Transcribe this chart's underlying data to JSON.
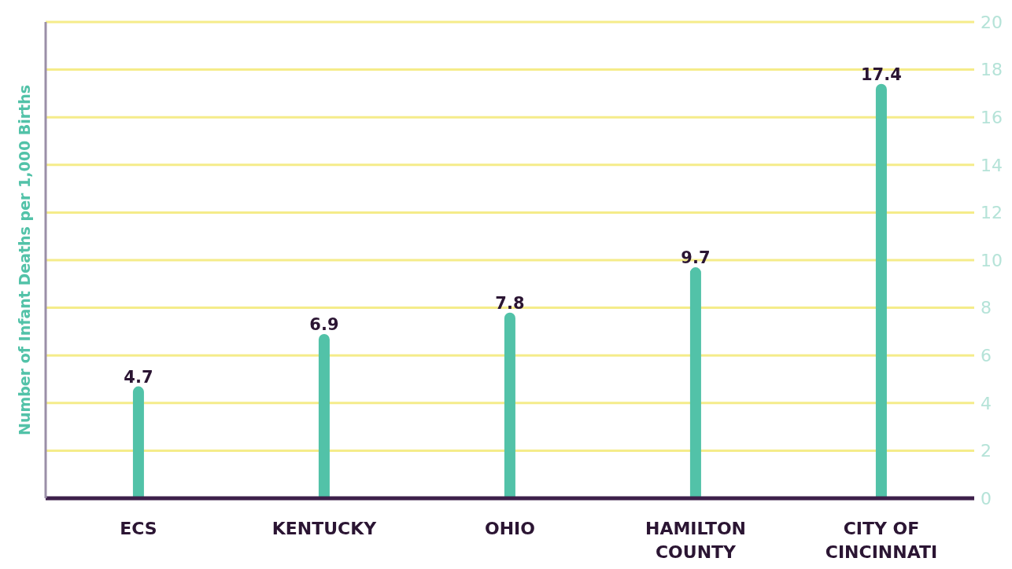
{
  "chart_data": {
    "type": "bar",
    "ylabel": "Number of Infant Deaths per 1,000 Births",
    "categories": [
      "ECS",
      "KENTUCKY",
      "OHIO",
      "HAMILTON COUNTY",
      "CITY OF CINCINNATI"
    ],
    "values": [
      4.7,
      6.9,
      7.8,
      9.7,
      17.4
    ],
    "color": "#52c2a8",
    "data_labels": true,
    "ylim": [
      0,
      20
    ],
    "yticks": [
      0,
      2,
      4,
      6,
      8,
      10,
      12,
      14,
      16,
      18,
      20
    ],
    "grid": "y"
  }
}
